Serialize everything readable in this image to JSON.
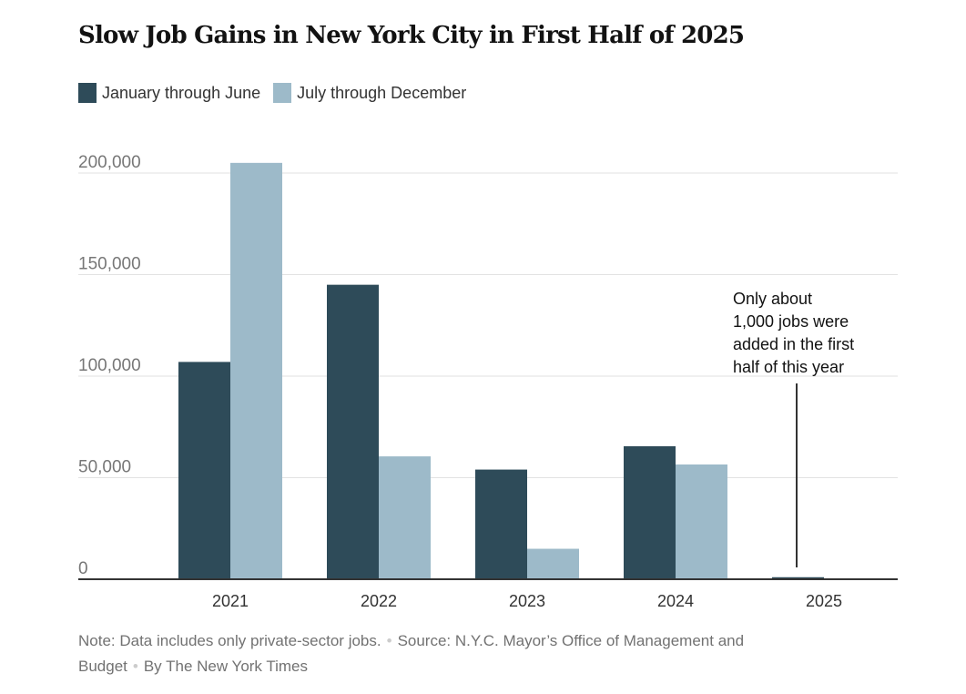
{
  "title": "Slow Job Gains in New York City in First Half of 2025",
  "colors": {
    "first_half": "#2e4b59",
    "second_half": "#9dbac9",
    "grid": "#e2e2e2",
    "axis": "#333333"
  },
  "chart_data": {
    "type": "bar",
    "title": "Slow Job Gains in New York City in First Half of 2025",
    "categories": [
      "2021",
      "2022",
      "2023",
      "2024",
      "2025"
    ],
    "series": [
      {
        "name": "January through June",
        "values": [
          107000,
          145000,
          54000,
          65500,
          1000
        ]
      },
      {
        "name": "July through December",
        "values": [
          205000,
          60500,
          15000,
          56500,
          null
        ]
      }
    ],
    "yticks": [
      0,
      50000,
      100000,
      150000,
      200000
    ],
    "ytick_labels": [
      "0",
      "50,000",
      "100,000",
      "150,000",
      "200,000"
    ],
    "ylim": [
      0,
      200000
    ],
    "grid": true,
    "legend_placement": "top-left",
    "xlabel": "",
    "ylabel": "",
    "annotation": {
      "category": "2025",
      "lines": [
        "Only about",
        "1,000 jobs were",
        "added in the first",
        "half of this year"
      ]
    }
  },
  "footer": {
    "note": "Note: Data includes only private-sector jobs.",
    "source": "Source: N.Y.C. Mayor’s Office of Management and Budget",
    "byline": "By The New York Times",
    "separator": "•"
  }
}
